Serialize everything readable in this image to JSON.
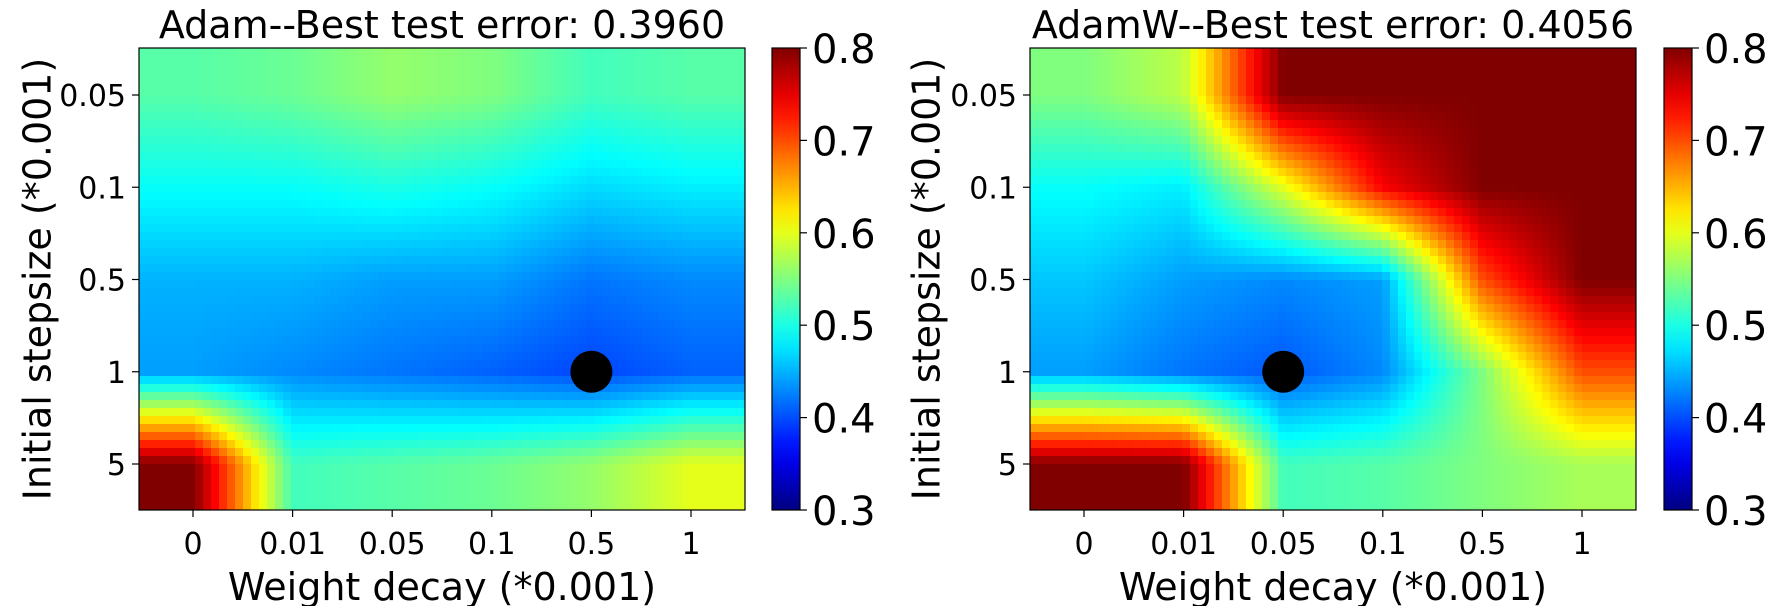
{
  "chart_data": [
    {
      "type": "heatmap",
      "title": "Adam--Best test error: 0.3960",
      "xlabel": "Weight decay (*0.001)",
      "ylabel": "Initial stepsize (*0.001)",
      "x_ticks": [
        "0",
        "0.01",
        "0.05",
        "0.1",
        "0.5",
        "1"
      ],
      "y_ticks": [
        "0.05",
        "0.1",
        "0.5",
        "1",
        "5"
      ],
      "values": [
        [
          0.53,
          0.54,
          0.56,
          0.55,
          0.52,
          0.53
        ],
        [
          0.49,
          0.49,
          0.5,
          0.49,
          0.47,
          0.48
        ],
        [
          0.45,
          0.45,
          0.44,
          0.44,
          0.42,
          0.43
        ],
        [
          0.44,
          0.43,
          0.42,
          0.41,
          0.396,
          0.41
        ],
        [
          0.8,
          0.52,
          0.53,
          0.54,
          0.56,
          0.6
        ]
      ],
      "best": {
        "x": "0.5",
        "y": "1",
        "value": 0.396
      },
      "colorbar": {
        "min": 0.3,
        "max": 0.8,
        "ticks": [
          "0.3",
          "0.4",
          "0.5",
          "0.6",
          "0.7",
          "0.8"
        ],
        "colormap": "jet"
      }
    },
    {
      "type": "heatmap",
      "title": "AdamW--Best test error: 0.4056",
      "xlabel": "Weight decay (*0.001)",
      "ylabel": "Initial stepsize (*0.001)",
      "x_ticks": [
        "0",
        "0.01",
        "0.05",
        "0.1",
        "0.5",
        "1"
      ],
      "y_ticks": [
        "0.05",
        "0.1",
        "0.5",
        "1",
        "5"
      ],
      "values": [
        [
          0.55,
          0.58,
          0.8,
          0.8,
          0.8,
          0.8
        ],
        [
          0.49,
          0.48,
          0.6,
          0.74,
          0.8,
          0.8
        ],
        [
          0.46,
          0.44,
          0.43,
          0.44,
          0.7,
          0.8
        ],
        [
          0.44,
          0.42,
          0.4056,
          0.43,
          0.55,
          0.7
        ],
        [
          0.8,
          0.8,
          0.52,
          0.53,
          0.55,
          0.57
        ]
      ],
      "best": {
        "x": "0.05",
        "y": "1",
        "value": 0.4056
      },
      "colorbar": {
        "min": 0.3,
        "max": 0.8,
        "ticks": [
          "0.3",
          "0.4",
          "0.5",
          "0.6",
          "0.7",
          "0.8"
        ],
        "colormap": "jet"
      }
    }
  ]
}
